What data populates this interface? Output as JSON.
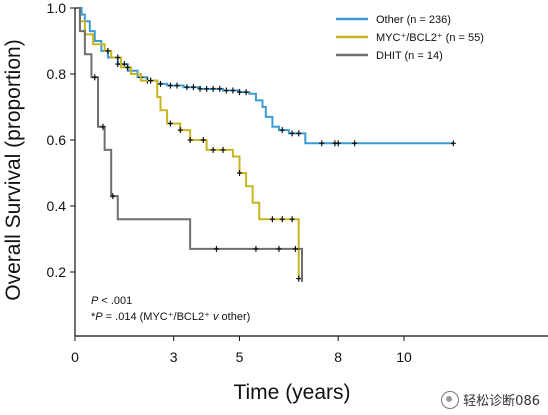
{
  "chart_data": {
    "type": "line",
    "step": true,
    "xlabel": "Time (years)",
    "ylabel": "Overall Survival (proportion)",
    "xlim": [
      0,
      11.5
    ],
    "ylim": [
      0.1,
      1.0
    ],
    "xticks": [
      0,
      3,
      5,
      8,
      10
    ],
    "xtick_labels": [
      "0",
      "3",
      "5",
      "8",
      "10"
    ],
    "yticks": [
      0.2,
      0.4,
      0.6,
      0.8,
      1.0
    ],
    "ytick_labels": [
      "0.2",
      "0.4",
      "0.6",
      "0.8",
      "1.0"
    ],
    "legend_position": "top-right",
    "grid": false,
    "series": [
      {
        "name": "Other (n = 236)",
        "color": "#3a9bd5",
        "points": [
          [
            0,
            1.0
          ],
          [
            0.2,
            0.98
          ],
          [
            0.3,
            0.96
          ],
          [
            0.45,
            0.93
          ],
          [
            0.6,
            0.9
          ],
          [
            0.8,
            0.87
          ],
          [
            1.0,
            0.85
          ],
          [
            1.3,
            0.83
          ],
          [
            1.6,
            0.81
          ],
          [
            1.9,
            0.79
          ],
          [
            2.2,
            0.78
          ],
          [
            2.5,
            0.77
          ],
          [
            2.8,
            0.765
          ],
          [
            3.3,
            0.76
          ],
          [
            3.8,
            0.755
          ],
          [
            4.5,
            0.75
          ],
          [
            5.0,
            0.745
          ],
          [
            5.3,
            0.74
          ],
          [
            5.5,
            0.72
          ],
          [
            5.7,
            0.7
          ],
          [
            5.8,
            0.67
          ],
          [
            6.0,
            0.64
          ],
          [
            6.2,
            0.63
          ],
          [
            6.5,
            0.62
          ],
          [
            7.0,
            0.59
          ],
          [
            11.5,
            0.59
          ]
        ],
        "censor_times": [
          1.3,
          1.5,
          2.0,
          2.2,
          2.6,
          2.9,
          3.1,
          3.4,
          3.6,
          3.8,
          4.0,
          4.2,
          4.4,
          4.6,
          4.8,
          5.0,
          5.2,
          6.3,
          6.6,
          6.8,
          7.5,
          7.9,
          8.0,
          8.5,
          11.5
        ]
      },
      {
        "name": "MYC⁺/BCL2⁺ (n = 55)",
        "color": "#c8b522",
        "points": [
          [
            0,
            1.0
          ],
          [
            0.15,
            0.96
          ],
          [
            0.3,
            0.92
          ],
          [
            0.55,
            0.89
          ],
          [
            0.9,
            0.87
          ],
          [
            1.1,
            0.85
          ],
          [
            1.4,
            0.82
          ],
          [
            1.7,
            0.8
          ],
          [
            2.0,
            0.78
          ],
          [
            2.5,
            0.73
          ],
          [
            2.6,
            0.69
          ],
          [
            2.8,
            0.65
          ],
          [
            3.2,
            0.63
          ],
          [
            3.5,
            0.6
          ],
          [
            4.0,
            0.57
          ],
          [
            4.8,
            0.55
          ],
          [
            5.0,
            0.5
          ],
          [
            5.2,
            0.46
          ],
          [
            5.4,
            0.41
          ],
          [
            5.6,
            0.36
          ],
          [
            6.0,
            0.36
          ],
          [
            6.8,
            0.36
          ],
          [
            6.8,
            0.18
          ]
        ],
        "censor_times": [
          1.0,
          1.3,
          1.6,
          2.3,
          2.9,
          3.2,
          3.5,
          3.9,
          4.2,
          4.5,
          5.0,
          6.0,
          6.3,
          6.6,
          6.8
        ]
      },
      {
        "name": "DHIT (n = 14)",
        "color": "#6e6e6e",
        "points": [
          [
            0,
            1.0
          ],
          [
            0.15,
            0.93
          ],
          [
            0.3,
            0.86
          ],
          [
            0.5,
            0.79
          ],
          [
            0.7,
            0.64
          ],
          [
            0.9,
            0.57
          ],
          [
            1.1,
            0.43
          ],
          [
            1.3,
            0.36
          ],
          [
            3.5,
            0.36
          ],
          [
            3.5,
            0.27
          ],
          [
            6.9,
            0.27
          ],
          [
            6.9,
            0.17
          ]
        ],
        "censor_times": [
          0.6,
          0.85,
          1.15,
          4.3,
          5.5,
          6.2,
          6.7
        ]
      }
    ],
    "annotations": [
      {
        "prefix": "",
        "italic": "P",
        "text": " < .001"
      },
      {
        "prefix": "*",
        "italic": "P",
        "text": " = .014 (MYC⁺/BCL2⁺ ",
        "italic2": "v",
        "text2": " other)"
      }
    ]
  },
  "watermark": {
    "text": "轻松诊断086",
    "icon": "wechat-circle-icon"
  }
}
